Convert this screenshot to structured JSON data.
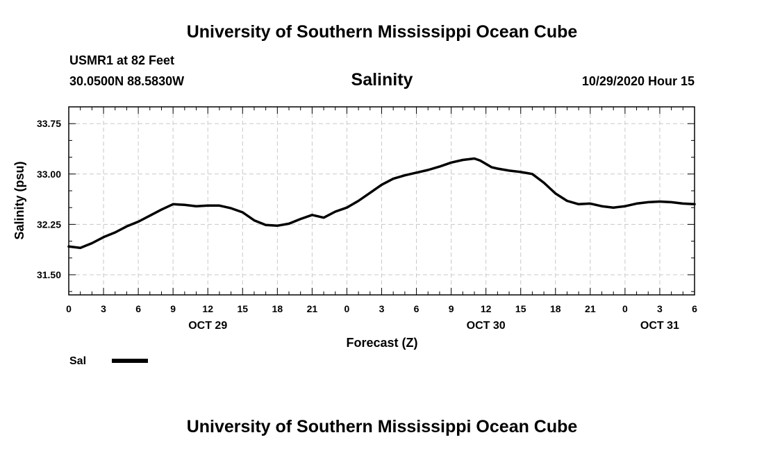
{
  "header": {
    "title": "University of Southern Mississippi Ocean Cube",
    "station": "USMR1 at 82 Feet",
    "coords": "30.0500N 88.5830W",
    "datetime": "10/29/2020 Hour 15"
  },
  "footer": {
    "title": "University of Southern Mississippi Ocean Cube"
  },
  "colors": {
    "line": "#000000",
    "grid": "#c8c8c8",
    "background": "#ffffff"
  },
  "chart_data": {
    "type": "line",
    "title": "Salinity",
    "xlabel": "Forecast (Z)",
    "ylabel": "Salinity (psu)",
    "xlim": [
      0,
      54
    ],
    "ylim": [
      31.2,
      34.0
    ],
    "y_ticks": [
      31.5,
      32.25,
      33.0,
      33.75
    ],
    "y_tick_labels": [
      "31.50",
      "32.25",
      "33.00",
      "33.75"
    ],
    "x_tick_labels": [
      "0",
      "3",
      "6",
      "9",
      "12",
      "15",
      "18",
      "21",
      "0",
      "3",
      "6",
      "9",
      "12",
      "15",
      "18",
      "21",
      "0",
      "3",
      "6"
    ],
    "day_labels": [
      {
        "label": "OCT 29",
        "at_hour": 12
      },
      {
        "label": "OCT 30",
        "at_hour": 36
      },
      {
        "label": "OCT 31",
        "at_hour": 51
      }
    ],
    "grid": true,
    "legend": {
      "position": "bottom-left",
      "entries": [
        "Sal"
      ]
    },
    "series": [
      {
        "name": "Sal",
        "x": [
          0,
          1,
          2,
          3,
          4,
          5,
          6,
          7,
          8,
          9,
          10,
          11,
          12,
          13,
          14,
          15,
          16,
          17,
          18,
          19,
          20,
          21,
          22,
          23,
          24,
          25,
          26,
          27,
          28,
          29,
          30,
          31,
          32,
          33,
          34,
          35,
          35.5,
          36,
          36.5,
          37,
          38,
          39,
          40,
          41,
          42,
          43,
          44,
          45,
          46,
          47,
          48,
          49,
          50,
          51,
          52,
          53,
          54
        ],
        "y": [
          31.92,
          31.9,
          31.97,
          32.06,
          32.13,
          32.22,
          32.29,
          32.38,
          32.47,
          32.55,
          32.54,
          32.52,
          32.53,
          32.53,
          32.49,
          32.43,
          32.31,
          32.24,
          32.23,
          32.26,
          32.33,
          32.39,
          32.35,
          32.44,
          32.5,
          32.6,
          32.72,
          32.84,
          32.93,
          32.98,
          33.02,
          33.06,
          33.11,
          33.17,
          33.21,
          33.23,
          33.2,
          33.15,
          33.1,
          33.08,
          33.05,
          33.03,
          33.0,
          32.87,
          32.71,
          32.6,
          32.55,
          32.56,
          32.52,
          32.5,
          32.52,
          32.56,
          32.58,
          32.59,
          32.58,
          32.56,
          32.55
        ]
      }
    ]
  }
}
